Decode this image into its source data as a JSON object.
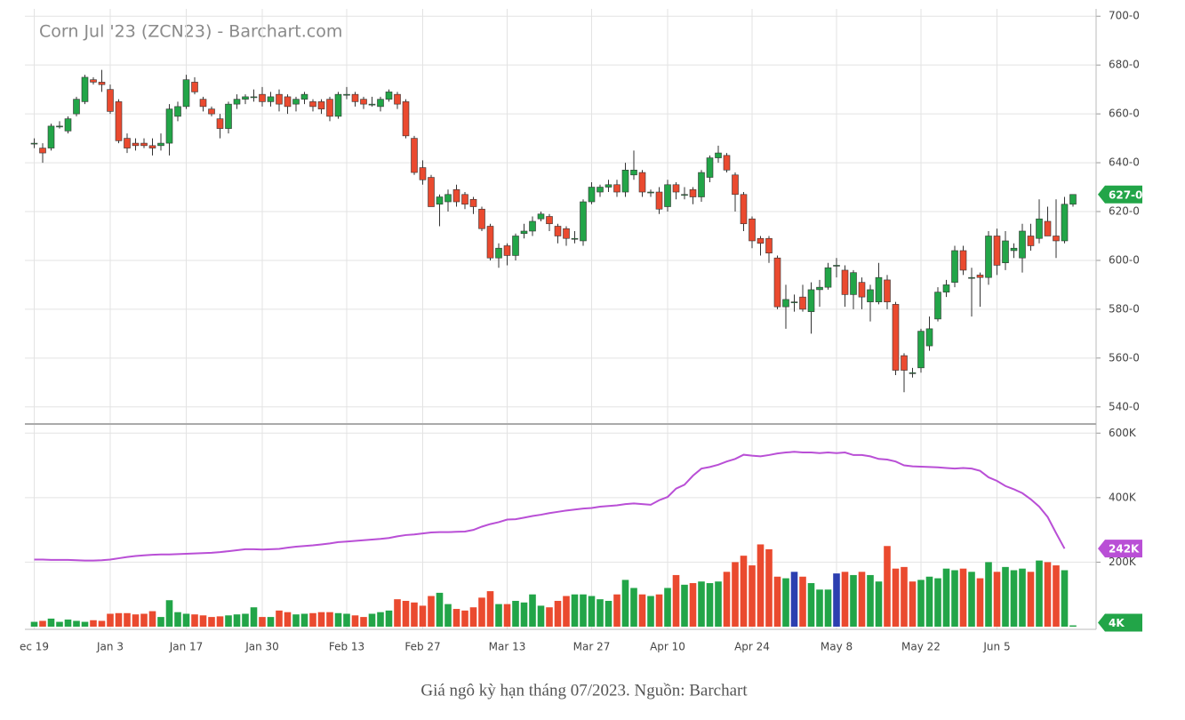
{
  "chart_data": {
    "type": "candlestick",
    "title": "Corn Jul '23 (ZCN23) - Barchart.com",
    "caption": "Giá ngô kỳ hạn tháng 07/2023. Nguồn: Barchart",
    "up_color": "#22a548",
    "down_color": "#ea4a2f",
    "categories": [
      "ec 19",
      null,
      null,
      null,
      null,
      null,
      null,
      null,
      null,
      "Jan 3",
      null,
      null,
      null,
      null,
      null,
      null,
      null,
      null,
      "Jan 17",
      null,
      null,
      null,
      null,
      null,
      null,
      null,
      null,
      "Jan 30",
      null,
      null,
      null,
      null,
      null,
      null,
      null,
      null,
      null,
      "Feb 13",
      null,
      null,
      null,
      null,
      null,
      null,
      null,
      null,
      "Feb 27",
      null,
      null,
      null,
      null,
      null,
      null,
      null,
      null,
      null,
      "Mar 13",
      null,
      null,
      null,
      null,
      null,
      null,
      null,
      null,
      null,
      "Mar 27",
      null,
      null,
      null,
      null,
      null,
      null,
      null,
      null,
      "Apr 10",
      null,
      null,
      null,
      null,
      null,
      null,
      null,
      null,
      null,
      "Apr 24",
      null,
      null,
      null,
      null,
      null,
      null,
      null,
      null,
      null,
      "May 8",
      null,
      null,
      null,
      null,
      null,
      null,
      null,
      null,
      null,
      "May 22",
      null,
      null,
      null,
      null,
      null,
      null,
      null,
      null,
      "Jun 5",
      null,
      null,
      null,
      null,
      null,
      null,
      null,
      null,
      null
    ],
    "ohlc": [
      [
        648,
        650,
        646,
        648
      ],
      [
        646,
        648,
        640,
        644
      ],
      [
        646,
        656,
        645,
        655
      ],
      [
        655,
        657,
        654,
        655
      ],
      [
        653,
        659,
        652,
        658
      ],
      [
        660,
        667,
        659,
        666
      ],
      [
        665,
        676,
        664,
        675
      ],
      [
        674,
        675,
        672,
        673
      ],
      [
        673,
        678,
        669,
        672
      ],
      [
        670,
        672,
        660,
        661
      ],
      [
        665,
        666,
        648,
        649
      ],
      [
        650,
        652,
        644,
        646
      ],
      [
        648,
        650,
        645,
        647
      ],
      [
        648,
        650,
        646,
        647
      ],
      [
        647,
        650,
        643,
        646
      ],
      [
        647,
        652,
        645,
        648
      ],
      [
        648,
        664,
        643,
        662
      ],
      [
        659,
        665,
        657,
        663
      ],
      [
        663,
        676,
        662,
        674
      ],
      [
        673,
        675,
        668,
        669
      ],
      [
        666,
        667,
        661,
        663
      ],
      [
        662,
        663,
        659,
        660
      ],
      [
        658,
        660,
        650,
        654
      ],
      [
        654,
        665,
        652,
        664
      ],
      [
        664,
        668,
        662,
        666
      ],
      [
        666,
        668,
        664,
        667
      ],
      [
        667,
        670,
        665,
        667
      ],
      [
        668,
        671,
        663,
        665
      ],
      [
        665,
        669,
        663,
        667
      ],
      [
        668,
        670,
        661,
        664
      ],
      [
        667,
        668,
        660,
        663
      ],
      [
        664,
        667,
        661,
        666
      ],
      [
        666,
        669,
        664,
        668
      ],
      [
        665,
        666,
        661,
        663
      ],
      [
        665,
        666,
        660,
        662
      ],
      [
        666,
        667,
        657,
        659
      ],
      [
        659,
        669,
        658,
        668
      ],
      [
        668,
        671,
        666,
        668
      ],
      [
        668,
        669,
        663,
        665
      ],
      [
        666,
        667,
        662,
        664
      ],
      [
        664,
        667,
        663,
        664
      ],
      [
        663,
        667,
        661,
        666
      ],
      [
        666,
        670,
        665,
        669
      ],
      [
        668,
        669,
        662,
        664
      ],
      [
        665,
        666,
        650,
        651
      ],
      [
        650,
        651,
        635,
        636
      ],
      [
        638,
        641,
        631,
        633
      ],
      [
        634,
        635,
        622,
        622
      ],
      [
        623,
        627,
        614,
        626
      ],
      [
        624,
        629,
        620,
        627
      ],
      [
        629,
        631,
        622,
        624
      ],
      [
        627,
        628,
        621,
        623
      ],
      [
        625,
        626,
        619,
        622
      ],
      [
        621,
        622,
        612,
        613
      ],
      [
        614,
        615,
        600,
        601
      ],
      [
        601,
        607,
        597,
        605
      ],
      [
        606,
        607,
        598,
        602
      ],
      [
        602,
        611,
        600,
        610
      ],
      [
        611,
        615,
        609,
        612
      ],
      [
        612,
        618,
        610,
        616
      ],
      [
        617,
        620,
        616,
        619
      ],
      [
        618,
        619,
        612,
        615
      ],
      [
        614,
        615,
        607,
        610
      ],
      [
        613,
        614,
        606,
        609
      ],
      [
        609,
        612,
        607,
        609
      ],
      [
        608,
        625,
        606,
        624
      ],
      [
        624,
        632,
        623,
        630
      ],
      [
        628,
        631,
        626,
        630
      ],
      [
        630,
        633,
        628,
        631
      ],
      [
        631,
        633,
        626,
        628
      ],
      [
        628,
        640,
        626,
        637
      ],
      [
        635,
        645,
        633,
        637
      ],
      [
        636,
        637,
        626,
        628
      ],
      [
        628,
        629,
        626,
        628
      ],
      [
        628,
        630,
        619,
        621
      ],
      [
        622,
        633,
        620,
        631
      ],
      [
        631,
        632,
        625,
        628
      ],
      [
        627,
        630,
        625,
        627
      ],
      [
        629,
        630,
        623,
        626
      ],
      [
        626,
        637,
        624,
        636
      ],
      [
        634,
        643,
        632,
        642
      ],
      [
        642,
        647,
        640,
        644
      ],
      [
        643,
        644,
        636,
        637
      ],
      [
        635,
        636,
        620,
        627
      ],
      [
        627,
        628,
        612,
        615
      ],
      [
        617,
        618,
        605,
        608
      ],
      [
        609,
        610,
        602,
        607
      ],
      [
        609,
        610,
        599,
        603
      ],
      [
        601,
        602,
        580,
        581
      ],
      [
        581,
        590,
        572,
        584
      ],
      [
        583,
        586,
        579,
        583
      ],
      [
        585,
        590,
        579,
        580
      ],
      [
        579,
        591,
        570,
        588
      ],
      [
        588,
        592,
        581,
        589
      ],
      [
        589,
        599,
        588,
        597
      ],
      [
        598,
        601,
        593,
        598
      ],
      [
        596,
        598,
        581,
        586
      ],
      [
        586,
        596,
        580,
        595
      ],
      [
        591,
        593,
        580,
        585
      ],
      [
        583,
        590,
        575,
        588
      ],
      [
        583,
        599,
        582,
        593
      ],
      [
        592,
        594,
        580,
        583
      ],
      [
        582,
        583,
        553,
        555
      ],
      [
        561,
        562,
        546,
        555
      ],
      [
        554,
        556,
        552,
        554
      ],
      [
        556,
        572,
        554,
        571
      ],
      [
        565,
        577,
        563,
        572
      ],
      [
        576,
        589,
        575,
        587
      ],
      [
        587,
        592,
        585,
        590
      ],
      [
        591,
        606,
        589,
        604
      ],
      [
        604,
        606,
        594,
        596
      ],
      [
        593,
        597,
        577,
        593
      ],
      [
        594,
        595,
        581,
        593
      ],
      [
        593,
        612,
        590,
        610
      ],
      [
        610,
        613,
        594,
        598
      ],
      [
        599,
        612,
        596,
        608
      ],
      [
        604,
        607,
        601,
        605
      ],
      [
        601,
        615,
        595,
        612
      ],
      [
        610,
        615,
        604,
        606
      ],
      [
        609,
        625,
        607,
        617
      ],
      [
        616,
        622,
        610,
        610
      ],
      [
        610,
        625,
        601,
        608
      ],
      [
        608,
        626,
        607,
        623
      ],
      [
        623,
        627,
        622,
        627
      ]
    ],
    "badge_label": "627-0",
    "ylim": [
      533,
      703
    ],
    "yticks": [
      {
        "value": 540,
        "label": "540-0"
      },
      {
        "value": 560,
        "label": "560-0"
      },
      {
        "value": 580,
        "label": "580-0"
      },
      {
        "value": 600,
        "label": "600-0"
      },
      {
        "value": 620,
        "label": "620-0"
      },
      {
        "value": 640,
        "label": "640-0"
      },
      {
        "value": 660,
        "label": "660-0"
      },
      {
        "value": 680,
        "label": "680-0"
      },
      {
        "value": 700,
        "label": "700-0"
      }
    ],
    "volume": {
      "values": [
        15,
        18,
        25,
        15,
        22,
        18,
        15,
        20,
        18,
        40,
        42,
        42,
        38,
        40,
        48,
        30,
        82,
        45,
        40,
        38,
        35,
        30,
        32,
        35,
        38,
        40,
        60,
        30,
        30,
        50,
        45,
        38,
        40,
        42,
        45,
        45,
        42,
        40,
        35,
        30,
        40,
        45,
        50,
        85,
        80,
        75,
        65,
        95,
        105,
        70,
        55,
        50,
        60,
        90,
        110,
        70,
        70,
        80,
        75,
        100,
        65,
        60,
        80,
        95,
        100,
        100,
        95,
        85,
        80,
        100,
        145,
        120,
        100,
        95,
        100,
        120,
        160,
        130,
        135,
        140,
        135,
        140,
        170,
        200,
        220,
        190,
        255,
        240,
        155,
        150,
        170,
        155,
        135,
        115,
        115,
        165,
        170,
        160,
        170,
        160,
        140,
        250,
        180,
        185,
        140,
        145,
        155,
        150,
        180,
        175,
        180,
        170,
        150,
        200,
        170,
        185,
        175,
        180,
        170,
        205,
        200,
        190,
        175,
        4
      ],
      "colors": [
        "#22a548",
        "#ea4a2f",
        "#22a548",
        "#22a548",
        "#22a548",
        "#22a548",
        "#22a548",
        "#ea4a2f",
        "#ea4a2f",
        "#ea4a2f",
        "#ea4a2f",
        "#ea4a2f",
        "#ea4a2f",
        "#ea4a2f",
        "#ea4a2f",
        "#22a548",
        "#22a548",
        "#22a548",
        "#22a548",
        "#ea4a2f",
        "#ea4a2f",
        "#ea4a2f",
        "#ea4a2f",
        "#22a548",
        "#22a548",
        "#22a548",
        "#22a548",
        "#ea4a2f",
        "#22a548",
        "#ea4a2f",
        "#ea4a2f",
        "#22a548",
        "#22a548",
        "#ea4a2f",
        "#ea4a2f",
        "#ea4a2f",
        "#22a548",
        "#22a548",
        "#ea4a2f",
        "#ea4a2f",
        "#22a548",
        "#22a548",
        "#22a548",
        "#ea4a2f",
        "#ea4a2f",
        "#ea4a2f",
        "#ea4a2f",
        "#ea4a2f",
        "#22a548",
        "#22a548",
        "#ea4a2f",
        "#ea4a2f",
        "#ea4a2f",
        "#ea4a2f",
        "#ea4a2f",
        "#22a548",
        "#ea4a2f",
        "#22a548",
        "#22a548",
        "#22a548",
        "#22a548",
        "#ea4a2f",
        "#ea4a2f",
        "#ea4a2f",
        "#22a548",
        "#22a548",
        "#22a548",
        "#22a548",
        "#22a548",
        "#ea4a2f",
        "#22a548",
        "#22a548",
        "#ea4a2f",
        "#22a548",
        "#ea4a2f",
        "#22a548",
        "#ea4a2f",
        "#22a548",
        "#ea4a2f",
        "#22a548",
        "#22a548",
        "#22a548",
        "#ea4a2f",
        "#ea4a2f",
        "#ea4a2f",
        "#ea4a2f",
        "#ea4a2f",
        "#ea4a2f",
        "#ea4a2f",
        "#22a548",
        "#2c3fb0",
        "#ea4a2f",
        "#22a548",
        "#22a548",
        "#22a548",
        "#2c3fb0",
        "#ea4a2f",
        "#22a548",
        "#ea4a2f",
        "#22a548",
        "#22a548",
        "#ea4a2f",
        "#ea4a2f",
        "#ea4a2f",
        "#ea4a2f",
        "#22a548",
        "#22a548",
        "#22a548",
        "#22a548",
        "#22a548",
        "#ea4a2f",
        "#22a548",
        "#ea4a2f",
        "#22a548",
        "#ea4a2f",
        "#22a548",
        "#22a548",
        "#22a548",
        "#ea4a2f",
        "#22a548",
        "#ea4a2f",
        "#ea4a2f",
        "#22a548",
        "#22a548"
      ],
      "badge_label": "4K",
      "ylim": [
        0,
        620
      ],
      "yticks": [
        {
          "value": 200,
          "label": "200K"
        },
        {
          "value": 400,
          "label": "400K"
        },
        {
          "value": 600,
          "label": "600K"
        }
      ]
    },
    "open_interest": {
      "color": "#b94fd6",
      "values": [
        208,
        208,
        207,
        207,
        207,
        206,
        205,
        205,
        206,
        208,
        212,
        216,
        219,
        221,
        223,
        224,
        224,
        225,
        226,
        227,
        228,
        229,
        231,
        234,
        237,
        240,
        240,
        239,
        240,
        241,
        245,
        248,
        250,
        252,
        255,
        258,
        262,
        264,
        266,
        268,
        270,
        272,
        275,
        280,
        284,
        286,
        289,
        292,
        293,
        293,
        294,
        295,
        300,
        310,
        318,
        324,
        332,
        333,
        338,
        343,
        347,
        352,
        356,
        360,
        363,
        366,
        368,
        372,
        374,
        376,
        380,
        382,
        380,
        378,
        392,
        402,
        428,
        440,
        468,
        490,
        495,
        502,
        512,
        520,
        533,
        530,
        528,
        532,
        537,
        540,
        542,
        540,
        540,
        538,
        540,
        538,
        540,
        532,
        532,
        528,
        520,
        518,
        512,
        500,
        497,
        496,
        495,
        494,
        492,
        490,
        492,
        490,
        483,
        463,
        452,
        436,
        426,
        414,
        395,
        372,
        340,
        290,
        242,
        null
      ],
      "badge_label": "242K"
    }
  }
}
